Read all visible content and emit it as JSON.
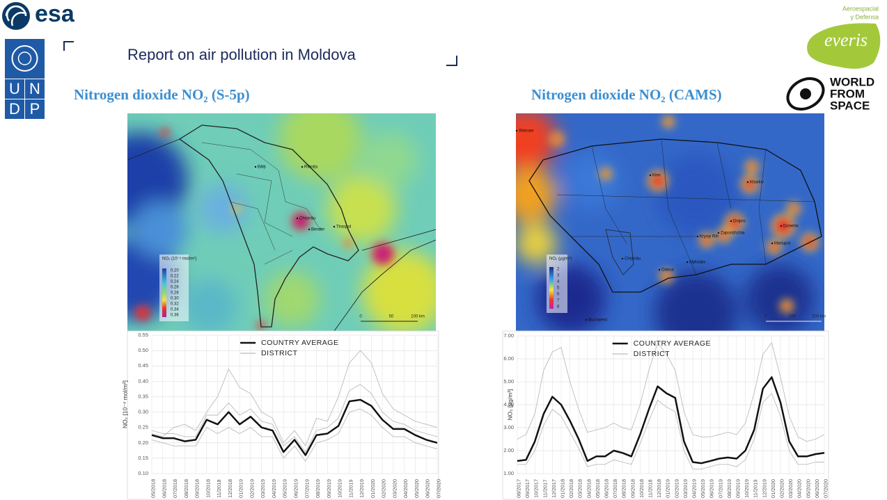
{
  "header": {
    "title": "Report on air pollution in Moldova",
    "logos": {
      "esa": "esa",
      "undp": [
        "U",
        "N",
        "D",
        "P"
      ],
      "everis_tagline": [
        "Aeroespacial",
        "y Defensa"
      ],
      "everis": "everis",
      "world_from_space": [
        "WORLD",
        "FROM",
        "SPACE"
      ]
    }
  },
  "panels": [
    {
      "subtitle": "Nitrogen dioxide NO₂ (S-5p)",
      "map": {
        "legend_title": "NO₂ (10⁻⁴ mol/m²)",
        "legend_labels": [
          "0.20",
          "0.22",
          "0.24",
          "0.26",
          "0.28",
          "0.30",
          "0.32",
          "0.34",
          "0.36"
        ],
        "cities": [
          "Bălți",
          "Rîbnița",
          "Chișinău",
          "Bender",
          "Tiraspol"
        ],
        "scale_labels": [
          "0",
          "50",
          "100 km"
        ]
      }
    },
    {
      "subtitle": "Nitrogen dioxide NO₂ (CAMS)",
      "map": {
        "legend_title": "NO₂ (µg/m³)",
        "legend_labels": [
          "2",
          "3",
          "4",
          "5",
          "6",
          "7",
          "8"
        ],
        "cities": [
          "Warsaw",
          "Kiev",
          "Kharkiv",
          "Dnipro",
          "Donetsk",
          "Kryvyi Rih",
          "Zaporizhzhia",
          "Mariupol",
          "Chișinău",
          "Mykolaiv",
          "Odesa",
          "Bucharest"
        ],
        "scale_labels": [
          "0",
          "100",
          "200 km"
        ]
      }
    }
  ],
  "chart_data": [
    {
      "type": "line",
      "ylabel": "NO₂ [10⁻⁴ mol/m²]",
      "categories": [
        "05/2018",
        "06/2018",
        "07/2018",
        "08/2018",
        "09/2018",
        "10/2018",
        "11/2018",
        "12/2018",
        "01/2019",
        "02/2019",
        "03/2019",
        "04/2019",
        "05/2019",
        "06/2019",
        "07/2019",
        "08/2019",
        "09/2019",
        "10/2019",
        "11/2019",
        "12/2019",
        "01/2020",
        "02/2020",
        "03/2020",
        "04/2020",
        "05/2020",
        "06/2020",
        "07/2020"
      ],
      "ylim": [
        0.1,
        0.55
      ],
      "yticks": [
        {
          "value": 0.1,
          "label": "0.10"
        },
        0.15,
        {
          "value": 0.2,
          "label": "0.20"
        },
        0.25,
        {
          "value": 0.3,
          "label": "0.30"
        },
        0.35,
        {
          "value": 0.4,
          "label": "0.40"
        },
        0.45,
        {
          "value": 0.5,
          "label": "0.50"
        },
        0.55
      ],
      "grid": true,
      "legend": "upper center",
      "series": [
        {
          "name": "COUNTRY AVERAGE",
          "color": "#111111",
          "values": [
            0.225,
            0.215,
            0.215,
            0.205,
            0.21,
            0.275,
            0.26,
            0.3,
            0.26,
            0.285,
            0.25,
            0.24,
            0.17,
            0.21,
            0.16,
            0.225,
            0.23,
            0.255,
            0.335,
            0.34,
            0.32,
            0.275,
            0.245,
            0.245,
            0.225,
            0.21,
            0.2
          ]
        },
        {
          "name": "DISTRICT",
          "color": "#bbbbbb",
          "values": [
            0.23,
            0.22,
            0.25,
            0.26,
            0.24,
            0.3,
            0.35,
            0.44,
            0.38,
            0.36,
            0.3,
            0.28,
            0.2,
            0.24,
            0.19,
            0.28,
            0.27,
            0.35,
            0.46,
            0.5,
            0.46,
            0.36,
            0.31,
            0.29,
            0.27,
            0.26,
            0.25
          ]
        },
        {
          "color": "#bbbbbb",
          "values": [
            0.24,
            0.23,
            0.23,
            0.22,
            0.22,
            0.29,
            0.29,
            0.33,
            0.29,
            0.31,
            0.27,
            0.26,
            0.19,
            0.22,
            0.17,
            0.24,
            0.25,
            0.28,
            0.37,
            0.39,
            0.36,
            0.3,
            0.27,
            0.26,
            0.24,
            0.23,
            0.22
          ]
        },
        {
          "color": "#bbbbbb",
          "values": [
            0.21,
            0.2,
            0.19,
            0.19,
            0.19,
            0.25,
            0.23,
            0.25,
            0.23,
            0.25,
            0.22,
            0.22,
            0.15,
            0.19,
            0.14,
            0.2,
            0.21,
            0.23,
            0.3,
            0.31,
            0.29,
            0.25,
            0.22,
            0.22,
            0.2,
            0.19,
            0.18
          ]
        }
      ]
    },
    {
      "type": "line",
      "ylabel": "NO₂ [µg/m³]",
      "categories": [
        "08/2017",
        "09/2017",
        "10/2017",
        "11/2017",
        "12/2017",
        "01/2018",
        "02/2018",
        "03/2018",
        "04/2018",
        "05/2018",
        "06/2018",
        "07/2018",
        "08/2018",
        "09/2018",
        "10/2018",
        "11/2018",
        "12/2018",
        "01/2019",
        "02/2019",
        "03/2019",
        "04/2019",
        "05/2019",
        "06/2019",
        "07/2019",
        "08/2019",
        "09/2019",
        "10/2019",
        "11/2019",
        "12/2019",
        "01/2020",
        "02/2020",
        "03/2020",
        "04/2020",
        "05/2020",
        "06/2020",
        "07/2020"
      ],
      "ylim": [
        1,
        7
      ],
      "yticks": [
        {
          "value": 1,
          "label": "1.00"
        },
        {
          "value": 2,
          "label": "2.00"
        },
        {
          "value": 3,
          "label": "3.00"
        },
        {
          "value": 4,
          "label": "4.00"
        },
        {
          "value": 5,
          "label": "5.00"
        },
        {
          "value": 6,
          "label": "6.00"
        },
        {
          "value": 7,
          "label": "7.00"
        }
      ],
      "grid": true,
      "legend": "upper center",
      "series": [
        {
          "name": "COUNTRY AVERAGE",
          "color": "#111111",
          "values": [
            1.55,
            1.6,
            2.4,
            3.6,
            4.35,
            4.0,
            3.3,
            2.5,
            1.55,
            1.75,
            1.75,
            2.0,
            1.9,
            1.75,
            2.7,
            3.8,
            4.8,
            4.5,
            4.3,
            2.4,
            1.5,
            1.45,
            1.55,
            1.65,
            1.7,
            1.65,
            2.0,
            2.9,
            4.7,
            5.2,
            4.1,
            2.4,
            1.75,
            1.75,
            1.85,
            1.9
          ]
        },
        {
          "name": "DISTRICT",
          "color": "#bbbbbb",
          "values": [
            2.5,
            2.7,
            3.6,
            5.5,
            6.3,
            6.5,
            5.0,
            3.8,
            2.8,
            2.9,
            3.0,
            3.2,
            3.0,
            2.9,
            4.0,
            5.5,
            6.7,
            6.2,
            5.5,
            3.7,
            2.7,
            2.6,
            2.6,
            2.7,
            2.8,
            2.7,
            3.2,
            4.5,
            6.2,
            6.7,
            5.2,
            3.5,
            2.6,
            2.4,
            2.5,
            2.7
          ]
        },
        {
          "color": "#bbbbbb",
          "values": [
            1.4,
            1.4,
            2.0,
            3.1,
            3.8,
            3.5,
            2.8,
            2.1,
            1.3,
            1.4,
            1.4,
            1.6,
            1.5,
            1.4,
            2.3,
            3.3,
            4.2,
            3.9,
            3.7,
            2.0,
            1.2,
            1.2,
            1.3,
            1.4,
            1.4,
            1.3,
            1.6,
            2.5,
            4.1,
            4.5,
            3.5,
            2.0,
            1.4,
            1.4,
            1.5,
            1.5
          ]
        }
      ]
    }
  ]
}
